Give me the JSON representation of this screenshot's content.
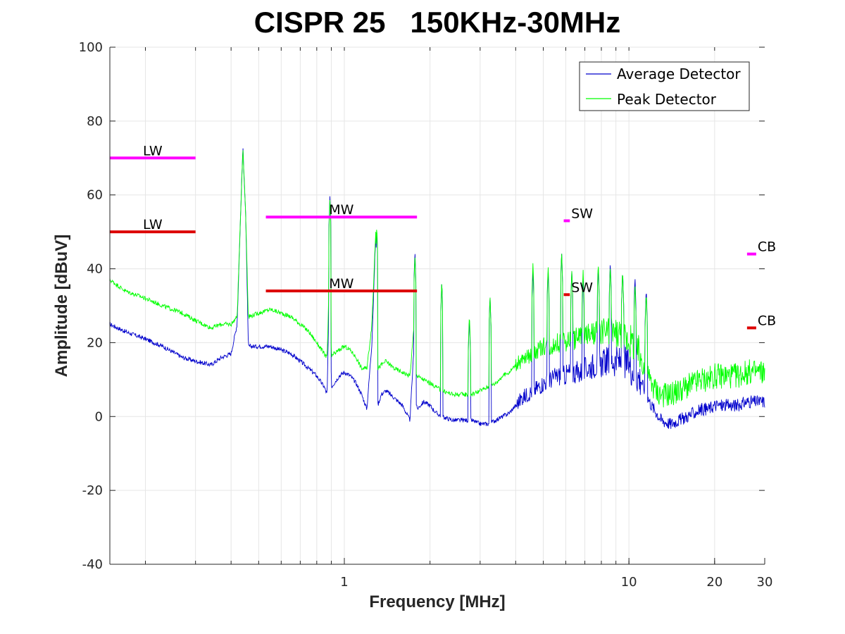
{
  "chart_data": {
    "type": "line",
    "title": "CISPR 25   150KHz-30MHz",
    "xlabel": "Frequency [MHz]",
    "ylabel": "Amplitude [dBuV]",
    "xscale": "log",
    "xlim": [
      0.15,
      30
    ],
    "ylim": [
      -40,
      100
    ],
    "yticks": [
      -40,
      -20,
      0,
      20,
      40,
      60,
      80,
      100
    ],
    "xticks": [
      {
        "value": 1,
        "label": "1"
      },
      {
        "value": 10,
        "label": "10"
      },
      {
        "value": 20,
        "label": "20"
      },
      {
        "value": 30,
        "label": "30"
      }
    ],
    "grid": true,
    "legend": {
      "position": "top-right",
      "entries": [
        {
          "name": "Average Detector",
          "color": "#0000cc"
        },
        {
          "name": "Peak Detector",
          "color": "#00ff00"
        }
      ]
    },
    "series": [
      {
        "name": "Average Detector",
        "color": "#0000cc",
        "x": [
          0.15,
          0.17,
          0.2,
          0.23,
          0.27,
          0.3,
          0.34,
          0.37,
          0.4,
          0.42,
          0.43,
          0.44,
          0.45,
          0.46,
          0.5,
          0.55,
          0.6,
          0.65,
          0.7,
          0.75,
          0.8,
          0.85,
          0.87,
          0.88,
          0.89,
          0.9,
          0.92,
          0.96,
          1.0,
          1.05,
          1.1,
          1.15,
          1.2,
          1.25,
          1.29,
          1.3,
          1.31,
          1.35,
          1.4,
          1.5,
          1.6,
          1.7,
          1.76,
          1.77,
          1.78,
          1.8,
          1.9,
          2.0,
          2.1,
          2.2,
          2.4,
          2.6,
          2.8,
          3.0,
          3.2,
          3.4,
          3.6,
          3.8,
          4.0,
          4.2,
          4.4,
          4.6,
          4.8,
          5.0,
          5.3,
          5.6,
          5.9,
          6.2,
          6.5,
          6.8,
          7.1,
          7.5,
          7.9,
          8.3,
          8.7,
          9.1,
          9.5,
          10.0,
          10.5,
          11.0,
          11.5,
          12.0,
          12.5,
          13.0,
          14.0,
          15.0,
          16.0,
          17.0,
          18.0,
          19.0,
          20.0,
          22.0,
          24.0,
          26.0,
          28.0,
          30.0
        ],
        "y": [
          25,
          23,
          21,
          19,
          16,
          15,
          14,
          16,
          17,
          25,
          50,
          73,
          55,
          19,
          19,
          19,
          18,
          17,
          15,
          13,
          11,
          8,
          6,
          25,
          60,
          8,
          9,
          11,
          12,
          11,
          9,
          6,
          2,
          20,
          50,
          20,
          3,
          6,
          7,
          5,
          3,
          -1,
          20,
          45,
          5,
          2,
          4,
          3,
          1,
          0,
          -1,
          -1,
          -1,
          -2,
          -2,
          -1,
          0,
          1,
          3,
          5,
          6,
          7,
          8,
          9,
          10,
          11,
          11,
          12,
          12,
          12,
          13,
          14,
          14,
          15,
          15,
          15,
          15,
          14,
          12,
          10,
          6,
          3,
          1,
          -1,
          -2,
          -1,
          0,
          1,
          2,
          2,
          3,
          3,
          3,
          4,
          4,
          4
        ]
      },
      {
        "name": "Peak Detector",
        "color": "#00ff00",
        "x": [
          0.15,
          0.17,
          0.2,
          0.23,
          0.27,
          0.3,
          0.34,
          0.37,
          0.4,
          0.42,
          0.43,
          0.44,
          0.45,
          0.46,
          0.5,
          0.55,
          0.6,
          0.65,
          0.7,
          0.75,
          0.8,
          0.85,
          0.87,
          0.88,
          0.89,
          0.9,
          0.92,
          0.96,
          1.0,
          1.05,
          1.1,
          1.15,
          1.2,
          1.25,
          1.29,
          1.3,
          1.31,
          1.35,
          1.4,
          1.5,
          1.6,
          1.7,
          1.76,
          1.77,
          1.78,
          1.8,
          1.9,
          2.0,
          2.1,
          2.2,
          2.4,
          2.6,
          2.8,
          3.0,
          3.2,
          3.4,
          3.6,
          3.8,
          4.0,
          4.2,
          4.4,
          4.6,
          4.8,
          5.0,
          5.3,
          5.6,
          5.9,
          6.2,
          6.5,
          6.8,
          7.1,
          7.5,
          7.9,
          8.3,
          8.7,
          9.1,
          9.5,
          10.0,
          10.5,
          11.0,
          11.5,
          12.0,
          12.5,
          13.0,
          14.0,
          15.0,
          16.0,
          17.0,
          18.0,
          19.0,
          20.0,
          22.0,
          24.0,
          26.0,
          28.0,
          30.0
        ],
        "y": [
          37,
          34,
          32,
          30,
          28,
          26,
          24,
          25,
          25,
          27,
          50,
          73,
          55,
          27,
          28,
          29,
          28,
          27,
          25,
          23,
          20,
          17,
          16,
          30,
          59,
          16,
          17,
          18,
          19,
          18,
          16,
          13,
          13,
          25,
          51,
          25,
          13,
          14,
          15,
          13,
          12,
          11,
          25,
          42,
          13,
          11,
          10,
          9,
          8,
          7,
          6,
          6,
          6,
          7,
          8,
          9,
          11,
          12,
          14,
          15,
          16,
          17,
          18,
          19,
          19,
          20,
          20,
          21,
          21,
          22,
          22,
          22,
          23,
          23,
          23,
          23,
          22,
          21,
          19,
          16,
          12,
          9,
          7,
          6,
          6,
          7,
          8,
          9,
          10,
          10,
          11,
          11,
          11,
          12,
          12,
          12
        ]
      }
    ],
    "spurs": [
      {
        "x": 0.89,
        "avg": 60,
        "peak": 59
      },
      {
        "x": 1.3,
        "avg": 51,
        "peak": 52
      },
      {
        "x": 1.77,
        "avg": 45,
        "peak": 44
      },
      {
        "x": 2.2,
        "avg": 37,
        "peak": 37
      },
      {
        "x": 2.75,
        "avg": 27,
        "peak": 28
      },
      {
        "x": 3.25,
        "avg": 33,
        "peak": 33
      },
      {
        "x": 4.6,
        "avg": 40,
        "peak": 42
      },
      {
        "x": 5.2,
        "avg": 40,
        "peak": 41
      },
      {
        "x": 5.8,
        "avg": 45,
        "peak": 45
      },
      {
        "x": 6.3,
        "avg": 40,
        "peak": 40
      },
      {
        "x": 6.9,
        "avg": 38,
        "peak": 40
      },
      {
        "x": 7.8,
        "avg": 41,
        "peak": 42
      },
      {
        "x": 8.6,
        "avg": 42,
        "peak": 41
      },
      {
        "x": 9.5,
        "avg": 40,
        "peak": 40
      },
      {
        "x": 10.5,
        "avg": 38,
        "peak": 36
      },
      {
        "x": 11.5,
        "avg": 35,
        "peak": 34
      }
    ],
    "limit_lines": [
      {
        "label": "LW",
        "color": "#ff00ff",
        "x_start": 0.15,
        "x_end": 0.3,
        "y": 70
      },
      {
        "label": "LW",
        "color": "#dd0000",
        "x_start": 0.15,
        "x_end": 0.3,
        "y": 50
      },
      {
        "label": "MW",
        "color": "#ff00ff",
        "x_start": 0.53,
        "x_end": 1.8,
        "y": 54
      },
      {
        "label": "MW",
        "color": "#dd0000",
        "x_start": 0.53,
        "x_end": 1.8,
        "y": 34
      },
      {
        "label": "SW",
        "color": "#ff00ff",
        "x_start": 5.9,
        "x_end": 6.2,
        "y": 53
      },
      {
        "label": "SW",
        "color": "#dd0000",
        "x_start": 5.9,
        "x_end": 6.2,
        "y": 33
      },
      {
        "label": "CB",
        "color": "#ff00ff",
        "x_start": 26,
        "x_end": 28,
        "y": 44
      },
      {
        "label": "CB",
        "color": "#dd0000",
        "x_start": 26,
        "x_end": 28,
        "y": 24
      }
    ]
  }
}
